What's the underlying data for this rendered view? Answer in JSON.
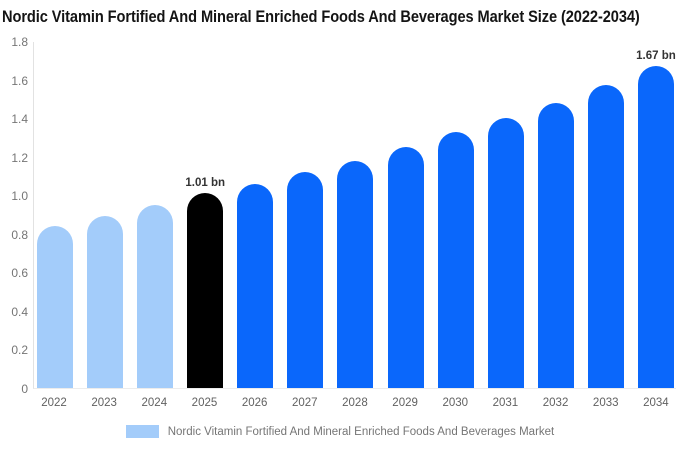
{
  "page": {
    "background": "#ffffff"
  },
  "chart_data": {
    "type": "bar",
    "title": "Nordic Vitamin Fortified And Mineral Enriched Foods And Beverages Market Size (2022-2034)",
    "categories": [
      "2022",
      "2023",
      "2024",
      "2025",
      "2026",
      "2027",
      "2028",
      "2029",
      "2030",
      "2031",
      "2032",
      "2033",
      "2034"
    ],
    "values": [
      0.84,
      0.89,
      0.95,
      1.01,
      1.06,
      1.12,
      1.18,
      1.25,
      1.33,
      1.4,
      1.48,
      1.57,
      1.67
    ],
    "unit": "bn",
    "ylim": [
      0,
      1.8
    ],
    "ytick_labels": [
      "0",
      "0.2",
      "0.4",
      "0.6",
      "0.8",
      "1.0",
      "1.2",
      "1.4",
      "1.6",
      "1.8"
    ],
    "grid": false,
    "legend_position": "bottom",
    "value_labels": {
      "2025": "1.01 bn",
      "2034": "1.67 bn"
    },
    "bar_roles": [
      "historical",
      "historical",
      "historical",
      "base_year",
      "forecast",
      "forecast",
      "forecast",
      "forecast",
      "forecast",
      "forecast",
      "forecast",
      "forecast",
      "forecast"
    ],
    "palette": {
      "historical": "#a3ccfa",
      "base_year": "#000000",
      "forecast": "#0a67fb"
    },
    "legend": {
      "label": "Nordic Vitamin Fortified And Mineral Enriched Foods And Beverages Market",
      "swatch_color": "#a3ccfa"
    },
    "text_colors": {
      "title": "#141414",
      "axis_labels": "#757575",
      "value_labels": "#333333"
    }
  }
}
